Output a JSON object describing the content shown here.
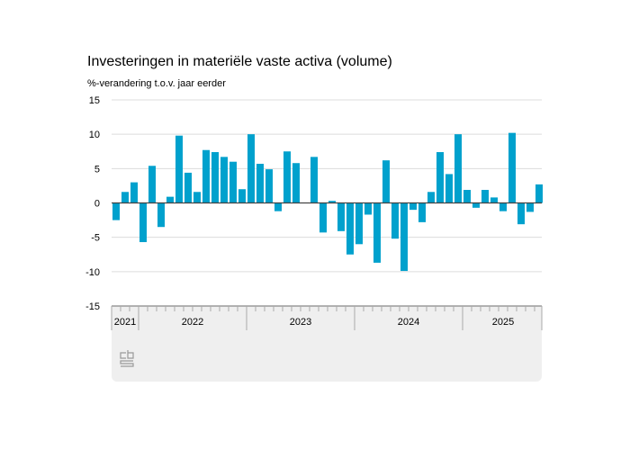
{
  "chart_data": {
    "type": "bar",
    "title": "Investeringen in materiële vaste activa (volume)",
    "ylabel": "%-verandering t.o.v. jaar eerder",
    "ylim": [
      -15,
      15
    ],
    "yticks": [
      15,
      10,
      5,
      0,
      -5,
      -10,
      -15
    ],
    "grid": true,
    "color": "#00a1cd",
    "years": [
      {
        "label": "2021",
        "months": 3
      },
      {
        "label": "2022",
        "months": 12
      },
      {
        "label": "2023",
        "months": 12
      },
      {
        "label": "2024",
        "months": 12
      },
      {
        "label": "2025",
        "months": 9
      }
    ],
    "values": [
      -2.5,
      1.6,
      3.0,
      -5.7,
      5.4,
      -3.5,
      0.9,
      9.8,
      4.4,
      1.6,
      7.7,
      7.4,
      6.7,
      6.0,
      2.0,
      10.0,
      5.7,
      4.9,
      -1.2,
      7.5,
      5.8,
      null,
      6.7,
      -4.3,
      0.3,
      -4.1,
      -7.5,
      -6.0,
      -1.7,
      -8.7,
      6.2,
      -5.2,
      -9.9,
      -1.0,
      -2.8,
      1.6,
      7.4,
      4.2,
      10.0,
      1.9,
      -0.7,
      1.9,
      0.8,
      -1.2,
      10.2,
      -3.1,
      -1.3,
      2.7
    ]
  }
}
